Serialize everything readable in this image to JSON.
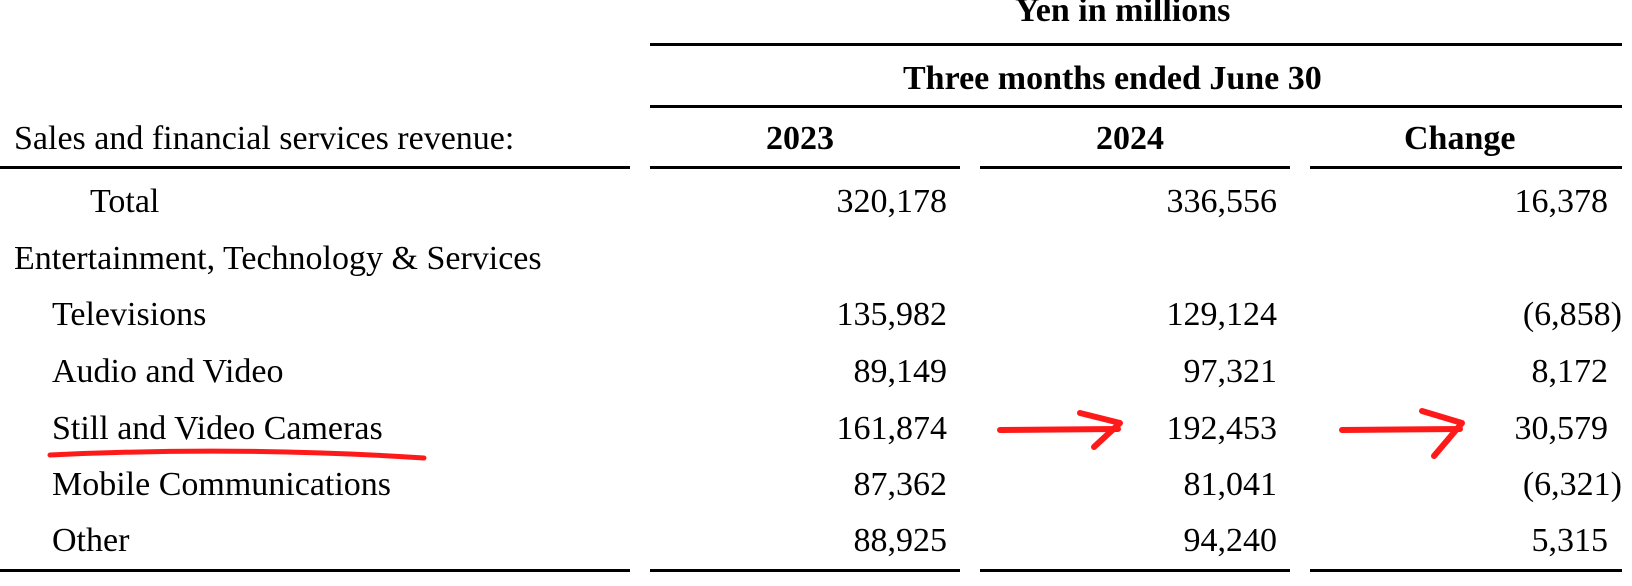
{
  "header": {
    "units": "Yen in millions",
    "period": "Three months ended June 30",
    "row_label": "Sales and financial services revenue:",
    "columns": [
      "2023",
      "2024",
      "Change"
    ]
  },
  "rows": [
    {
      "label": "Total",
      "values": [
        "320,178",
        "336,556",
        "16,378"
      ]
    },
    {
      "label": "Entertainment, Technology & Services",
      "values": [
        "",
        "",
        ""
      ]
    },
    {
      "label": "Televisions",
      "values": [
        "135,982",
        "129,124",
        "(6,858)"
      ]
    },
    {
      "label": "Audio and Video",
      "values": [
        "89,149",
        "97,321",
        "8,172"
      ]
    },
    {
      "label": "Still and Video Cameras",
      "values": [
        "161,874",
        "192,453",
        "30,579"
      ]
    },
    {
      "label": "Mobile Communications",
      "values": [
        "87,362",
        "81,041",
        "(6,321)"
      ]
    },
    {
      "label": "Other",
      "values": [
        "88,925",
        "94,240",
        "5,315"
      ]
    }
  ],
  "annotations": {
    "color": "#ff1a1a",
    "highlighted_row": "Still and Video Cameras"
  }
}
